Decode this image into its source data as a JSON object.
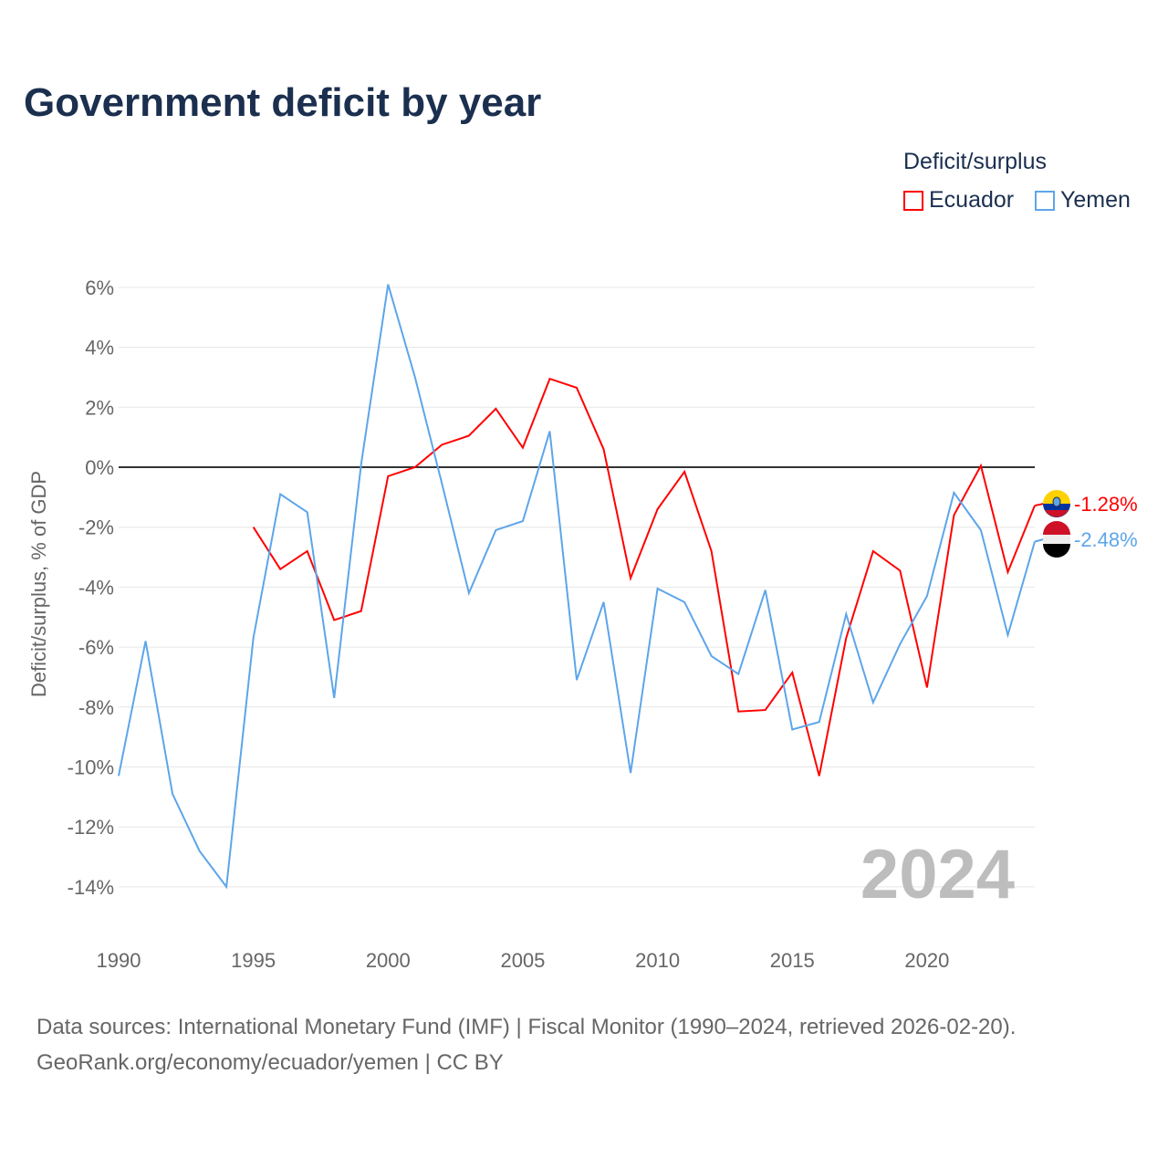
{
  "chart_data": {
    "type": "line",
    "title": "Government deficit by year",
    "ylabel": "Deficit/surplus, % of GDP",
    "xlabel": "",
    "legend_title": "Deficit/surplus",
    "legend_position": "top-right",
    "ylim": [
      -15,
      6.5
    ],
    "xlim": [
      1990,
      2024
    ],
    "yticks": [
      6,
      4,
      2,
      0,
      -2,
      -4,
      -6,
      -8,
      -10,
      -12,
      -14
    ],
    "ytick_labels": [
      "6%",
      "4%",
      "2%",
      "0%",
      "-2%",
      "-4%",
      "-6%",
      "-8%",
      "-10%",
      "-12%",
      "-14%"
    ],
    "xticks": [
      1990,
      1995,
      2000,
      2005,
      2010,
      2015,
      2020
    ],
    "xtick_labels": [
      "1990",
      "1995",
      "2000",
      "2005",
      "2010",
      "2015",
      "2020"
    ],
    "year_watermark": "2024",
    "series": [
      {
        "name": "Ecuador",
        "color": "#ff0000",
        "end_label": "-1.28%",
        "x": [
          1995,
          1996,
          1997,
          1998,
          1999,
          2000,
          2001,
          2002,
          2003,
          2004,
          2005,
          2006,
          2007,
          2008,
          2009,
          2010,
          2011,
          2012,
          2013,
          2014,
          2015,
          2016,
          2017,
          2018,
          2019,
          2020,
          2021,
          2022,
          2023,
          2024
        ],
        "values": [
          -2.0,
          -3.4,
          -2.8,
          -5.1,
          -4.8,
          -0.3,
          0.0,
          0.75,
          1.05,
          1.95,
          0.65,
          2.95,
          2.65,
          0.6,
          -3.7,
          -1.4,
          -0.15,
          -2.8,
          -8.15,
          -8.1,
          -6.85,
          -10.3,
          -5.7,
          -2.8,
          -3.45,
          -7.35,
          -1.6,
          0.05,
          -3.5,
          -1.28
        ]
      },
      {
        "name": "Yemen",
        "color": "#5da5ea",
        "end_label": "-2.48%",
        "x": [
          1990,
          1991,
          1992,
          1993,
          1994,
          1995,
          1996,
          1997,
          1998,
          1999,
          2000,
          2001,
          2002,
          2003,
          2004,
          2005,
          2006,
          2007,
          2008,
          2009,
          2010,
          2011,
          2012,
          2013,
          2014,
          2015,
          2016,
          2017,
          2018,
          2019,
          2020,
          2021,
          2022,
          2023,
          2024
        ],
        "values": [
          -10.3,
          -5.8,
          -10.9,
          -12.8,
          -14.0,
          -5.7,
          -0.9,
          -1.5,
          -7.7,
          0.1,
          6.1,
          3.0,
          -0.55,
          -4.2,
          -2.1,
          -1.8,
          1.2,
          -7.1,
          -4.5,
          -10.2,
          -4.05,
          -4.5,
          -6.3,
          -6.9,
          -4.1,
          -8.75,
          -8.5,
          -4.9,
          -7.85,
          -5.9,
          -4.3,
          -0.85,
          -2.1,
          -5.6,
          -2.48
        ]
      }
    ]
  },
  "footer": {
    "line1": "Data sources: International Monetary Fund (IMF) | Fiscal Monitor (1990–2024, retrieved 2026-02-20).",
    "line2": "GeoRank.org/economy/ecuador/yemen | CC BY"
  }
}
